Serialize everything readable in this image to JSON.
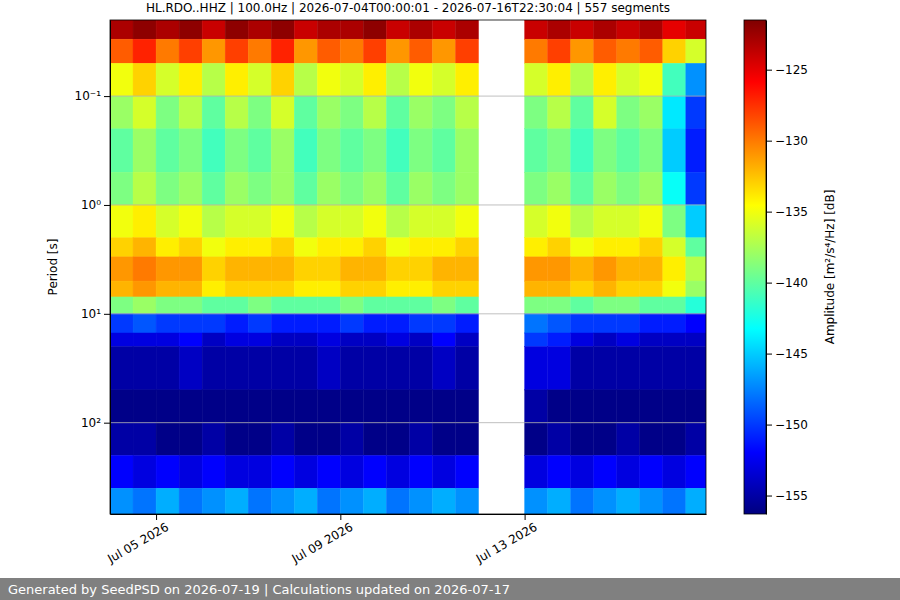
{
  "chart_data": {
    "type": "heatmap",
    "title": "HL.RDO..HHZ | 100.0Hz | 2026-07-04T00:00:01 - 2026-07-16T22:30:04 | 557 segments",
    "ylabel": "Period [s]",
    "footer": "Generated by SeedPSD on 2026-07-19 | Calculations updated on 2026-07-17",
    "log": "y",
    "grid": "y",
    "xlim": [
      "2026-07-04T00:00:01",
      "2026-07-16T22:30:04"
    ],
    "xticks": [
      {
        "value": "2026-07-05",
        "label": "Jul 05 2026"
      },
      {
        "value": "2026-07-09",
        "label": "Jul 09 2026"
      },
      {
        "value": "2026-07-13",
        "label": "Jul 13 2026"
      }
    ],
    "ylim": [
      0.02,
      690
    ],
    "yticks": [
      {
        "value": 0.1,
        "label": "10⁻¹"
      },
      {
        "value": 1,
        "label": "10⁰"
      },
      {
        "value": 10,
        "label": "10¹"
      },
      {
        "value": 100,
        "label": "10²"
      }
    ],
    "x_edges": [
      "2026-07-04T00:00:01",
      "2026-07-04T12:00:00",
      "2026-07-05T00:00:00",
      "2026-07-05T12:00:00",
      "2026-07-06T00:00:00",
      "2026-07-06T12:00:00",
      "2026-07-07T00:00:00",
      "2026-07-07T12:00:00",
      "2026-07-08T00:00:00",
      "2026-07-08T12:00:00",
      "2026-07-09T00:00:00",
      "2026-07-09T12:00:00",
      "2026-07-10T00:00:00",
      "2026-07-10T12:00:00",
      "2026-07-11T00:00:00",
      "2026-07-11T12:00:00",
      "2026-07-12T00:00:00",
      "2026-07-12T12:00:00",
      "2026-07-13T00:00:00",
      "2026-07-13T12:00:00",
      "2026-07-14T00:00:00",
      "2026-07-14T12:00:00",
      "2026-07-15T00:00:00",
      "2026-07-15T12:00:00",
      "2026-07-16T00:00:00",
      "2026-07-16T12:00:00",
      "2026-07-16T22:30:04"
    ],
    "y_edges": [
      0.02,
      0.03,
      0.05,
      0.1,
      0.2,
      0.5,
      1,
      2,
      3,
      5,
      7,
      10,
      15,
      20,
      50,
      100,
      200,
      400,
      690
    ],
    "z": [
      [
        -123,
        -122,
        -123,
        -122,
        -124,
        -122,
        -123,
        -122,
        -124,
        -123,
        -123,
        -122,
        -124,
        -123,
        -124,
        -123,
        null,
        null,
        -124,
        -123,
        -124,
        -123,
        -124,
        -123,
        -125,
        -124
      ],
      [
        -129,
        -127,
        -130,
        -128,
        -131,
        -128,
        -130,
        -127,
        -131,
        -129,
        -130,
        -128,
        -131,
        -129,
        -131,
        -128,
        null,
        null,
        -130,
        -128,
        -131,
        -129,
        -130,
        -129,
        -133,
        -136
      ],
      [
        -135,
        -133,
        -136,
        -134,
        -137,
        -134,
        -136,
        -133,
        -137,
        -135,
        -136,
        -134,
        -137,
        -135,
        -136,
        -134,
        null,
        null,
        -136,
        -134,
        -137,
        -134,
        -136,
        -135,
        -141,
        -147
      ],
      [
        -138,
        -136,
        -139,
        -137,
        -140,
        -137,
        -139,
        -136,
        -140,
        -138,
        -139,
        -137,
        -140,
        -138,
        -139,
        -137,
        null,
        null,
        -139,
        -137,
        -140,
        -136,
        -139,
        -138,
        -144,
        -150
      ],
      [
        -140,
        -138,
        -140,
        -139,
        -141,
        -139,
        -140,
        -138,
        -141,
        -139,
        -140,
        -139,
        -141,
        -139,
        -140,
        -138,
        null,
        null,
        -140,
        -139,
        -141,
        -139,
        -140,
        -139,
        -145,
        -151
      ],
      [
        -139,
        -137,
        -139,
        -138,
        -140,
        -138,
        -139,
        -138,
        -140,
        -138,
        -139,
        -138,
        -140,
        -138,
        -139,
        -138,
        null,
        null,
        -139,
        -138,
        -140,
        -138,
        -139,
        -138,
        -143,
        -150
      ],
      [
        -135,
        -134,
        -136,
        -135,
        -137,
        -136,
        -136,
        -135,
        -137,
        -136,
        -136,
        -135,
        -137,
        -136,
        -136,
        -135,
        null,
        null,
        -136,
        -135,
        -137,
        -136,
        -136,
        -135,
        -139,
        -145
      ],
      [
        -133,
        -132,
        -134,
        -133,
        -135,
        -134,
        -134,
        -133,
        -135,
        -134,
        -134,
        -133,
        -135,
        -134,
        -134,
        -133,
        null,
        null,
        -134,
        -133,
        -135,
        -134,
        -134,
        -133,
        -136,
        -140
      ],
      [
        -131,
        -130,
        -131,
        -131,
        -133,
        -132,
        -132,
        -132,
        -133,
        -133,
        -132,
        -132,
        -133,
        -133,
        -132,
        -132,
        null,
        null,
        -131,
        -131,
        -132,
        -131,
        -132,
        -132,
        -134,
        -137
      ],
      [
        -132,
        -131,
        -132,
        -132,
        -134,
        -133,
        -133,
        -133,
        -134,
        -134,
        -133,
        -133,
        -134,
        -134,
        -133,
        -133,
        null,
        null,
        -132,
        -132,
        -133,
        -132,
        -133,
        -133,
        -135,
        -138
      ],
      [
        -139,
        -138,
        -139,
        -139,
        -140,
        -140,
        -139,
        -140,
        -140,
        -140,
        -139,
        -140,
        -140,
        -140,
        -139,
        -140,
        null,
        null,
        -139,
        -139,
        -140,
        -139,
        -139,
        -140,
        -140,
        -142
      ],
      [
        -150,
        -149,
        -150,
        -150,
        -150,
        -151,
        -150,
        -151,
        -151,
        -151,
        -150,
        -151,
        -151,
        -150,
        -150,
        -151,
        null,
        null,
        -148,
        -149,
        -150,
        -150,
        -150,
        -151,
        -151,
        -152
      ],
      [
        -153,
        -153,
        -153,
        -152,
        -154,
        -153,
        -153,
        -154,
        -154,
        -153,
        -154,
        -154,
        -153,
        -154,
        -152,
        -154,
        null,
        null,
        -150,
        -151,
        -153,
        -154,
        -153,
        -154,
        -154,
        -154
      ],
      [
        -155,
        -155,
        -155,
        -154,
        -155,
        -155,
        -155,
        -155,
        -155,
        -154,
        -155,
        -155,
        -155,
        -155,
        -154,
        -155,
        null,
        null,
        -153,
        -153,
        -155,
        -155,
        -155,
        -155,
        -155,
        -155
      ],
      [
        -156,
        -156,
        -156,
        -156,
        -156,
        -156,
        -156,
        -156,
        -156,
        -156,
        -156,
        -156,
        -156,
        -156,
        -156,
        -156,
        null,
        null,
        -155,
        -156,
        -156,
        -156,
        -156,
        -156,
        -156,
        -156
      ],
      [
        -155,
        -155,
        -156,
        -156,
        -155,
        -156,
        -156,
        -155,
        -156,
        -156,
        -155,
        -156,
        -156,
        -155,
        -156,
        -156,
        null,
        null,
        -156,
        -155,
        -156,
        -156,
        -155,
        -156,
        -156,
        -155
      ],
      [
        -152,
        -153,
        -152,
        -153,
        -152,
        -153,
        -153,
        -152,
        -153,
        -152,
        -153,
        -152,
        -153,
        -152,
        -153,
        -152,
        null,
        null,
        -153,
        -152,
        -153,
        -152,
        -153,
        -152,
        -153,
        -152
      ],
      [
        -147,
        -148,
        -146,
        -148,
        -147,
        -146,
        -148,
        -147,
        -146,
        -148,
        -147,
        -146,
        -148,
        -147,
        -146,
        -147,
        null,
        null,
        -147,
        -146,
        -148,
        -147,
        -146,
        -147,
        -148,
        -146
      ]
    ],
    "colorbar": {
      "label": "Amplitude [m²/s⁴/Hz] [dB]",
      "range": [
        -156.3,
        -121.5
      ],
      "ticks": [
        {
          "value": -155,
          "label": "−155"
        },
        {
          "value": -150,
          "label": "−150"
        },
        {
          "value": -145,
          "label": "−145"
        },
        {
          "value": -140,
          "label": "−140"
        },
        {
          "value": -135,
          "label": "−135"
        },
        {
          "value": -130,
          "label": "−130"
        },
        {
          "value": -125,
          "label": "−125"
        }
      ]
    }
  }
}
